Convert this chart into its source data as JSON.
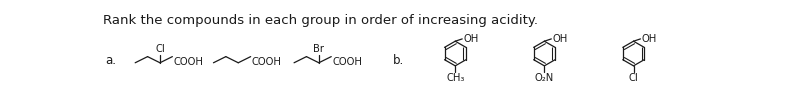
{
  "title": "Rank the compounds in each group in order of increasing acidity.",
  "title_fontsize": 9.5,
  "background_color": "#ffffff",
  "text_color": "#1a1a1a",
  "figsize": [
    7.9,
    1.06
  ],
  "dpi": 100,
  "label_a": "a.",
  "label_b": "b.",
  "group_a_subs": [
    "Cl",
    "",
    "Br"
  ],
  "group_b_subs": [
    "CH₃",
    "O₂N",
    "Cl"
  ],
  "acid_label": "COOH",
  "oh_label": "OH"
}
